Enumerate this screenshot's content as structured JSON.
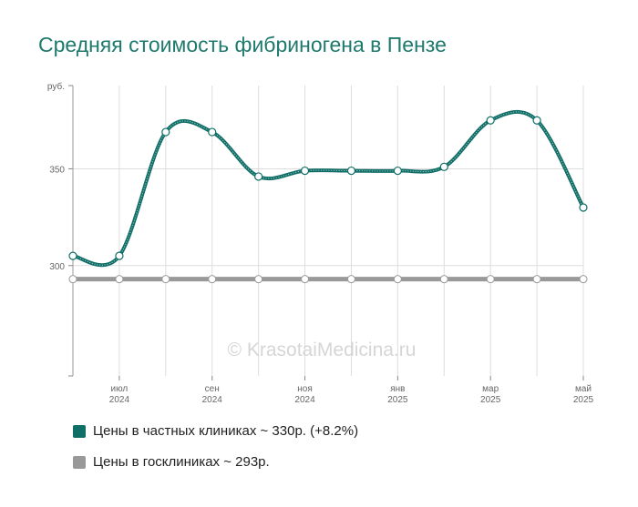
{
  "chart_data": {
    "type": "line",
    "title": "Средняя стоимость фибриногена в Пензе",
    "ylabel": "руб.",
    "ylim": [
      243,
      393
    ],
    "yticks": [
      300,
      350
    ],
    "x_points": [
      "2024-06",
      "2024-07",
      "2024-08",
      "2024-09",
      "2024-10",
      "2024-11",
      "2024-12",
      "2025-01",
      "2025-02",
      "2025-03",
      "2025-04",
      "2025-05"
    ],
    "x_tick_labels": [
      {
        "index": 1,
        "month": "июл",
        "year": "2024"
      },
      {
        "index": 3,
        "month": "сен",
        "year": "2024"
      },
      {
        "index": 5,
        "month": "ноя",
        "year": "2024"
      },
      {
        "index": 7,
        "month": "янв",
        "year": "2025"
      },
      {
        "index": 9,
        "month": "мар",
        "year": "2025"
      },
      {
        "index": 11,
        "month": "май",
        "year": "2025"
      }
    ],
    "series": [
      {
        "name": "Цены в частных клиниках ~ 330р. (+8.2%)",
        "color": "#0f6e66",
        "values": [
          305,
          305,
          369,
          369,
          346,
          349,
          349,
          349,
          351,
          375,
          375,
          330
        ]
      },
      {
        "name": "Цены в госклиниках ~ 293р.",
        "color": "#999999",
        "values": [
          293,
          293,
          293,
          293,
          293,
          293,
          293,
          293,
          293,
          293,
          293,
          293
        ]
      }
    ],
    "watermark": "© KrasotaiMedicina.ru",
    "grid": true,
    "legend_position": "bottom"
  }
}
